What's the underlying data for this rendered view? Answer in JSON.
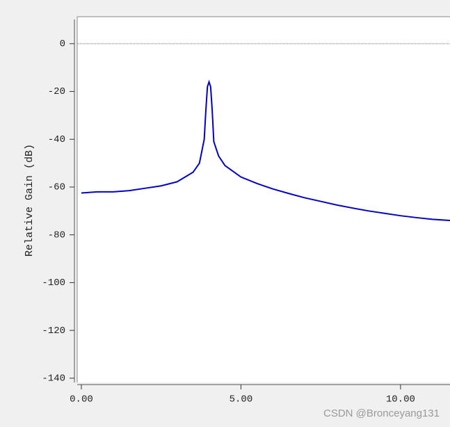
{
  "chart_data": {
    "type": "line",
    "y_label": "Relative Gain (dB)",
    "watermark": "CSDN @Bronceyang131",
    "x": [
      0,
      0.5,
      1,
      1.5,
      2,
      2.5,
      3,
      3.5,
      3.7,
      3.85,
      3.9,
      3.95,
      4.0,
      4.05,
      4.1,
      4.15,
      4.3,
      4.5,
      5,
      5.5,
      6,
      6.5,
      7,
      7.5,
      8,
      8.5,
      9,
      9.5,
      10,
      10.5,
      11,
      11.55
    ],
    "series": [
      {
        "name": "Relative Gain",
        "color": "#0000cc",
        "values": [
          -62.5,
          -62,
          -62,
          -61.5,
          -60.5,
          -59.5,
          -57.8,
          -53.8,
          -50,
          -40,
          -28,
          -18,
          -16,
          -18,
          -28,
          -41,
          -47,
          -51,
          -55.8,
          -58.5,
          -60.8,
          -62.7,
          -64.5,
          -66,
          -67.5,
          -68.8,
          -70,
          -71,
          -72,
          -72.8,
          -73.5,
          -74
        ]
      }
    ],
    "hline": {
      "value": 0,
      "color": "#1a8fb0"
    },
    "xlim": [
      -0.13,
      11.55
    ],
    "xticks": [
      {
        "value": 0,
        "label": "0.00"
      },
      {
        "value": 5,
        "label": "5.00"
      },
      {
        "value": 10,
        "label": "10.00"
      }
    ],
    "ylim": [
      -141.8,
      11.3
    ],
    "yticks": [
      0,
      -20,
      -40,
      -60,
      -80,
      -100,
      -120,
      -140
    ]
  }
}
